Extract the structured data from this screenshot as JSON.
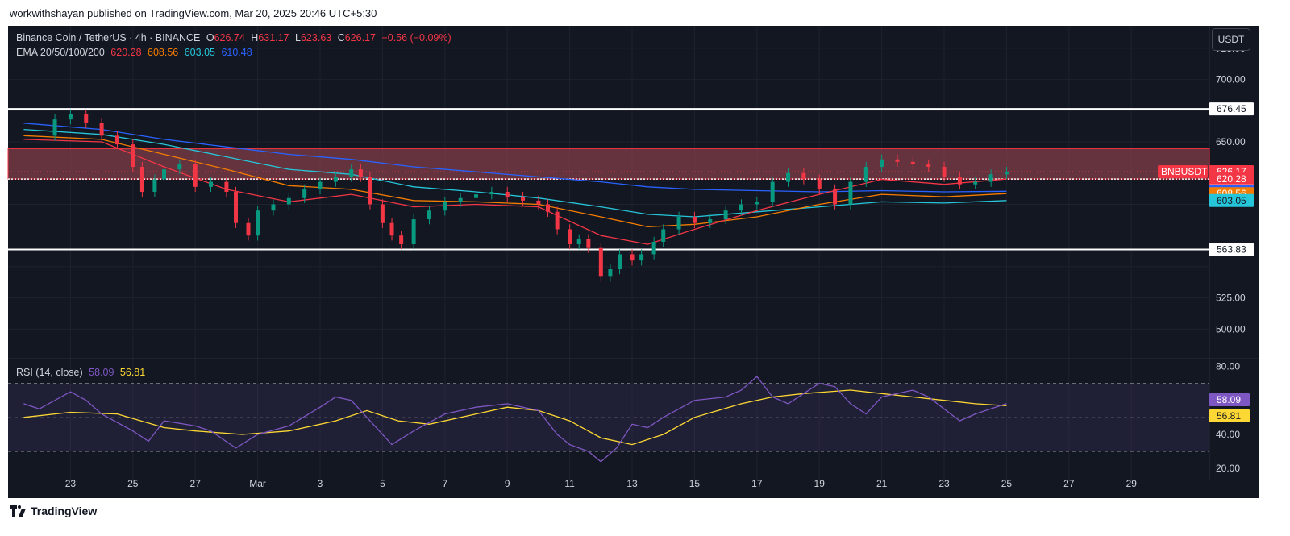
{
  "header": {
    "publish_line": "workwithshayan published on TradingView.com, Mar 20, 2025 20:46 UTC+5:30"
  },
  "legend": {
    "symbol": "Binance Coin / TetherUS · 4h · BINANCE",
    "o_label": "O",
    "o_value": "626.74",
    "h_label": "H",
    "h_value": "631.17",
    "l_label": "L",
    "l_value": "623.63",
    "c_label": "C",
    "c_value": "626.17",
    "change": "−0.56 (−0.09%)",
    "ema_label": "EMA 20/50/100/200",
    "ema20": "620.28",
    "ema50": "608.56",
    "ema100": "603.05",
    "ema200": "610.48"
  },
  "rsi_legend": {
    "label": "RSI (14, close)",
    "rsi": "58.09",
    "ma": "56.81"
  },
  "currency_button": "USDT",
  "footer": {
    "brand": "TradingView"
  },
  "colors": {
    "background": "#131722",
    "grid": "#1e222d",
    "up": "#089981",
    "down": "#f23645",
    "ema20": "#f23645",
    "ema50": "#f57c00",
    "ema100": "#26c6da",
    "ema200": "#2962ff",
    "rsi": "#7e57c2",
    "rsi_ma": "#fdd835",
    "zone": "#a84a56"
  },
  "chart_data": {
    "type": "candlestick",
    "symbol_tag": "BNBUSDT",
    "price_ticks": [
      "725.00",
      "700.00",
      "650.00",
      "525.00",
      "500.00"
    ],
    "price_tick_values": [
      725,
      700,
      650,
      525,
      500
    ],
    "y_range": [
      477,
      743
    ],
    "x_labels": [
      "23",
      "25",
      "27",
      "Mar",
      "3",
      "5",
      "7",
      "9",
      "11",
      "13",
      "15",
      "17",
      "19",
      "21",
      "23",
      "25",
      "27",
      "29"
    ],
    "x_label_days": [
      23,
      25,
      27,
      29,
      31,
      33,
      35,
      37,
      39,
      41,
      43,
      45,
      47,
      49,
      51,
      53,
      55,
      57
    ],
    "horizontal_levels": [
      676.45,
      563.83
    ],
    "supply_zone": [
      644.5,
      620.3
    ],
    "price_tags": [
      {
        "text": "676.45",
        "value": 676.45,
        "bg": "#ffffff",
        "fg": "#131722"
      },
      {
        "text": "626.17",
        "value": 626.17,
        "bg": "#f23645",
        "fg": "#ffffff"
      },
      {
        "text": "620.28",
        "value": 620.28,
        "bg": "#f23645",
        "fg": "#ffffff"
      },
      {
        "text": "610.79",
        "value": 610.79,
        "bg": "#ffffff",
        "fg": "#131722"
      },
      {
        "text": "610.48",
        "value": 610.48,
        "bg": "#2962ff",
        "fg": "#ffffff"
      },
      {
        "text": "608.56",
        "value": 608.56,
        "bg": "#f57c00",
        "fg": "#ffffff"
      },
      {
        "text": "603.05",
        "value": 603.05,
        "bg": "#26c6da",
        "fg": "#131722"
      },
      {
        "text": "563.83",
        "value": 563.83,
        "bg": "#ffffff",
        "fg": "#131722"
      }
    ],
    "candles_daily_closes": [
      {
        "day": 21.5,
        "close": 655
      },
      {
        "day": 22.5,
        "close": 668
      },
      {
        "day": 23.0,
        "close": 672
      },
      {
        "day": 23.5,
        "close": 665
      },
      {
        "day": 24.0,
        "close": 655
      },
      {
        "day": 24.5,
        "close": 648
      },
      {
        "day": 25.0,
        "close": 630
      },
      {
        "day": 25.3,
        "close": 610
      },
      {
        "day": 25.7,
        "close": 620
      },
      {
        "day": 26.0,
        "close": 628
      },
      {
        "day": 26.5,
        "close": 632
      },
      {
        "day": 27.0,
        "close": 614
      },
      {
        "day": 27.5,
        "close": 618
      },
      {
        "day": 28.0,
        "close": 610
      },
      {
        "day": 28.3,
        "close": 585
      },
      {
        "day": 28.7,
        "close": 575
      },
      {
        "day": 29.0,
        "close": 595
      },
      {
        "day": 29.5,
        "close": 600
      },
      {
        "day": 30.0,
        "close": 605
      },
      {
        "day": 30.5,
        "close": 612
      },
      {
        "day": 31.0,
        "close": 618
      },
      {
        "day": 31.5,
        "close": 622
      },
      {
        "day": 32.0,
        "close": 628
      },
      {
        "day": 32.3,
        "close": 622
      },
      {
        "day": 32.6,
        "close": 600
      },
      {
        "day": 33.0,
        "close": 585
      },
      {
        "day": 33.3,
        "close": 575
      },
      {
        "day": 33.6,
        "close": 568
      },
      {
        "day": 34.0,
        "close": 588
      },
      {
        "day": 34.5,
        "close": 595
      },
      {
        "day": 35.0,
        "close": 602
      },
      {
        "day": 35.5,
        "close": 605
      },
      {
        "day": 36.0,
        "close": 608
      },
      {
        "day": 36.5,
        "close": 610
      },
      {
        "day": 37.0,
        "close": 606
      },
      {
        "day": 37.5,
        "close": 603
      },
      {
        "day": 38.0,
        "close": 600
      },
      {
        "day": 38.3,
        "close": 594
      },
      {
        "day": 38.6,
        "close": 580
      },
      {
        "day": 39.0,
        "close": 568
      },
      {
        "day": 39.3,
        "close": 572
      },
      {
        "day": 39.6,
        "close": 565
      },
      {
        "day": 40.0,
        "close": 542
      },
      {
        "day": 40.3,
        "close": 548
      },
      {
        "day": 40.6,
        "close": 560
      },
      {
        "day": 41.0,
        "close": 555
      },
      {
        "day": 41.3,
        "close": 560
      },
      {
        "day": 41.7,
        "close": 570
      },
      {
        "day": 42.0,
        "close": 580
      },
      {
        "day": 42.5,
        "close": 590
      },
      {
        "day": 43.0,
        "close": 585
      },
      {
        "day": 43.5,
        "close": 588
      },
      {
        "day": 44.0,
        "close": 595
      },
      {
        "day": 44.5,
        "close": 600
      },
      {
        "day": 45.0,
        "close": 602
      },
      {
        "day": 45.5,
        "close": 618
      },
      {
        "day": 46.0,
        "close": 625
      },
      {
        "day": 46.5,
        "close": 620
      },
      {
        "day": 47.0,
        "close": 612
      },
      {
        "day": 47.5,
        "close": 600
      },
      {
        "day": 48.0,
        "close": 618
      },
      {
        "day": 48.5,
        "close": 630
      },
      {
        "day": 49.0,
        "close": 636
      },
      {
        "day": 49.5,
        "close": 634
      },
      {
        "day": 50.0,
        "close": 632
      },
      {
        "day": 50.5,
        "close": 630
      },
      {
        "day": 51.0,
        "close": 622
      },
      {
        "day": 51.5,
        "close": 616
      },
      {
        "day": 52.0,
        "close": 618
      },
      {
        "day": 52.5,
        "close": 624
      },
      {
        "day": 53.0,
        "close": 626.17
      }
    ],
    "ema20_points": [
      [
        21.5,
        652
      ],
      [
        24,
        650
      ],
      [
        26,
        630
      ],
      [
        28,
        612
      ],
      [
        30,
        602
      ],
      [
        32,
        608
      ],
      [
        34,
        598
      ],
      [
        36,
        600
      ],
      [
        38,
        598
      ],
      [
        40,
        575
      ],
      [
        41.5,
        568
      ],
      [
        43,
        580
      ],
      [
        45,
        595
      ],
      [
        47,
        608
      ],
      [
        49,
        620
      ],
      [
        51,
        616
      ],
      [
        53,
        620.28
      ]
    ],
    "ema50_points": [
      [
        21.5,
        655
      ],
      [
        24,
        652
      ],
      [
        26,
        640
      ],
      [
        28,
        628
      ],
      [
        30,
        615
      ],
      [
        32,
        612
      ],
      [
        34,
        603
      ],
      [
        36,
        602
      ],
      [
        38,
        600
      ],
      [
        40,
        590
      ],
      [
        41.5,
        582
      ],
      [
        43,
        584
      ],
      [
        45,
        590
      ],
      [
        47,
        600
      ],
      [
        49,
        608
      ],
      [
        51,
        606
      ],
      [
        53,
        608.56
      ]
    ],
    "ema100_points": [
      [
        21.5,
        660
      ],
      [
        24,
        656
      ],
      [
        26,
        648
      ],
      [
        28,
        638
      ],
      [
        30,
        628
      ],
      [
        32,
        624
      ],
      [
        34,
        614
      ],
      [
        36,
        610
      ],
      [
        38,
        605
      ],
      [
        40,
        598
      ],
      [
        41.5,
        592
      ],
      [
        43,
        590
      ],
      [
        45,
        594
      ],
      [
        47,
        598
      ],
      [
        49,
        602
      ],
      [
        51,
        601
      ],
      [
        53,
        603.05
      ]
    ],
    "ema200_points": [
      [
        21.5,
        665
      ],
      [
        24,
        660
      ],
      [
        26,
        652
      ],
      [
        28,
        646
      ],
      [
        30,
        640
      ],
      [
        32,
        636
      ],
      [
        34,
        630
      ],
      [
        36,
        626
      ],
      [
        38,
        622
      ],
      [
        40,
        618
      ],
      [
        41.5,
        614
      ],
      [
        43,
        612
      ],
      [
        45,
        611
      ],
      [
        47,
        610
      ],
      [
        49,
        611
      ],
      [
        51,
        610
      ],
      [
        53,
        610.48
      ]
    ],
    "rsi_panel": {
      "ticks": [
        "80.00",
        "40.00",
        "20.00"
      ],
      "tick_values": [
        80,
        40,
        20
      ],
      "y_range": [
        13,
        84
      ],
      "upper_band": 70,
      "lower_band": 30,
      "rsi_points": [
        [
          21.5,
          58
        ],
        [
          22,
          55
        ],
        [
          23,
          65
        ],
        [
          23.5,
          60
        ],
        [
          24,
          52
        ],
        [
          25,
          42
        ],
        [
          25.5,
          36
        ],
        [
          26,
          48
        ],
        [
          27,
          45
        ],
        [
          27.5,
          42
        ],
        [
          28.3,
          32
        ],
        [
          29,
          40
        ],
        [
          30,
          45
        ],
        [
          31,
          56
        ],
        [
          31.5,
          62
        ],
        [
          32,
          60
        ],
        [
          32.6,
          48
        ],
        [
          33.3,
          34
        ],
        [
          34,
          42
        ],
        [
          35,
          52
        ],
        [
          36,
          56
        ],
        [
          37,
          58
        ],
        [
          38,
          54
        ],
        [
          38.6,
          40
        ],
        [
          39,
          34
        ],
        [
          39.6,
          30
        ],
        [
          40,
          24
        ],
        [
          40.5,
          32
        ],
        [
          41,
          46
        ],
        [
          41.5,
          44
        ],
        [
          42,
          50
        ],
        [
          43,
          60
        ],
        [
          44,
          62
        ],
        [
          44.5,
          66
        ],
        [
          45,
          74
        ],
        [
          45.5,
          62
        ],
        [
          46,
          58
        ],
        [
          47,
          70
        ],
        [
          47.5,
          68
        ],
        [
          48,
          58
        ],
        [
          48.5,
          52
        ],
        [
          49,
          62
        ],
        [
          50,
          66
        ],
        [
          50.5,
          62
        ],
        [
          51,
          55
        ],
        [
          51.5,
          48
        ],
        [
          52,
          52
        ],
        [
          53,
          58.09
        ]
      ],
      "ma_points": [
        [
          21.5,
          50
        ],
        [
          23,
          53
        ],
        [
          24.5,
          52
        ],
        [
          26,
          44
        ],
        [
          27,
          42
        ],
        [
          28.5,
          40
        ],
        [
          30,
          42
        ],
        [
          31.5,
          48
        ],
        [
          32.5,
          54
        ],
        [
          33.5,
          48
        ],
        [
          34.5,
          46
        ],
        [
          36,
          52
        ],
        [
          37,
          56
        ],
        [
          38,
          54
        ],
        [
          39,
          48
        ],
        [
          40,
          38
        ],
        [
          41,
          34
        ],
        [
          42,
          40
        ],
        [
          43,
          50
        ],
        [
          44.5,
          58
        ],
        [
          45.5,
          62
        ],
        [
          46.5,
          64
        ],
        [
          48,
          66
        ],
        [
          49,
          64
        ],
        [
          50,
          62
        ],
        [
          51,
          60
        ],
        [
          52,
          58
        ],
        [
          53,
          56.81
        ]
      ]
    }
  }
}
